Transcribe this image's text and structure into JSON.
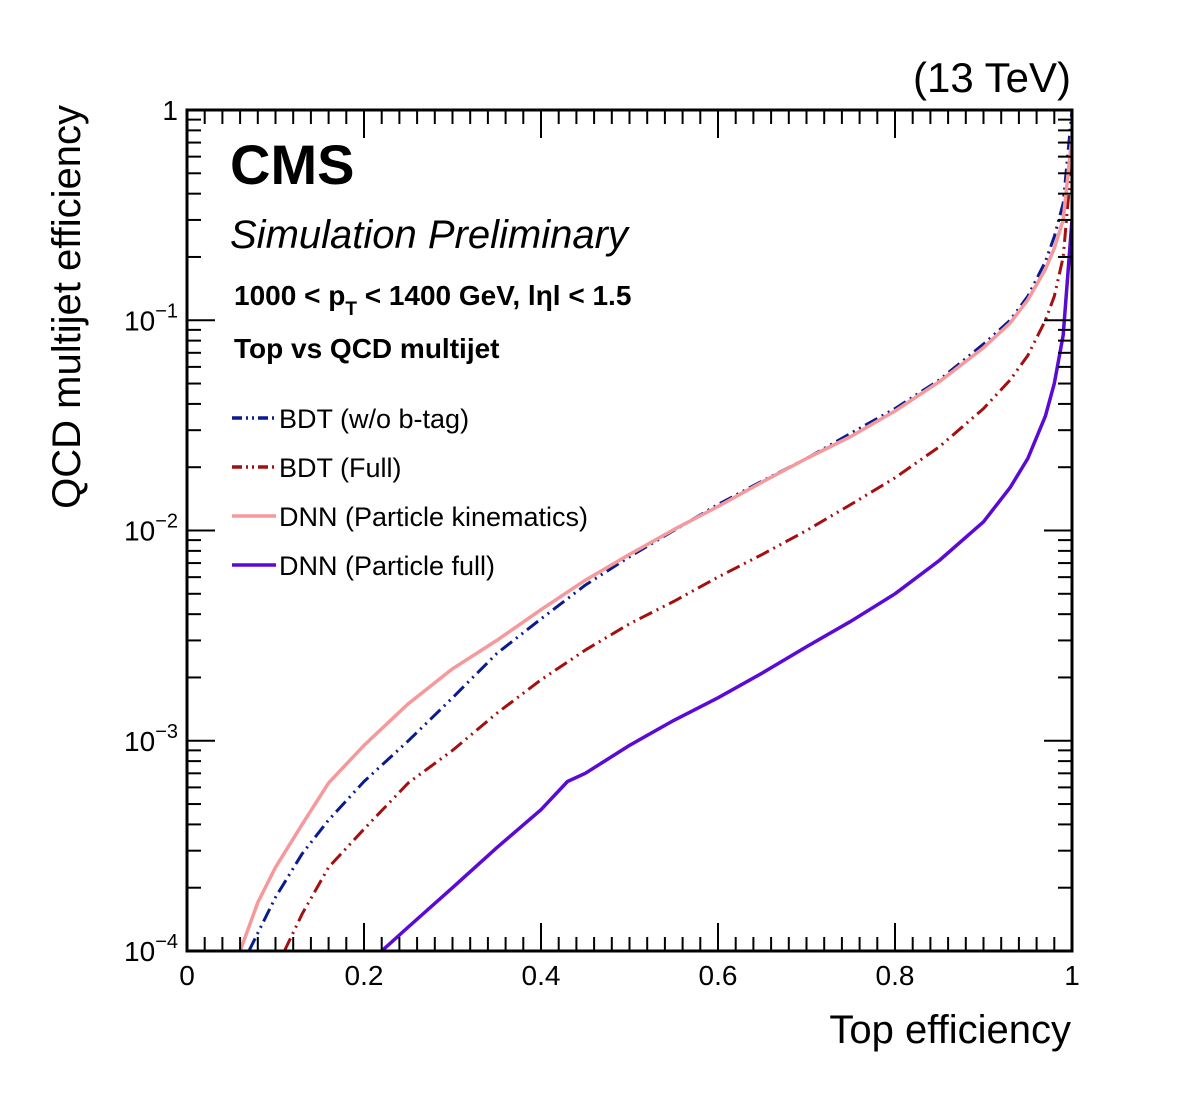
{
  "header": {
    "energy": "(13 TeV)",
    "experiment": "CMS",
    "status": "Simulation Preliminary",
    "selection_prefix": "1000 < p",
    "selection_sub": "T",
    "selection_suffix": " < 1400 GeV, lηl < 1.5",
    "comparison": "Top vs QCD multijet"
  },
  "chart_data": {
    "type": "line",
    "xlabel": "Top efficiency",
    "ylabel": "QCD multijet efficiency",
    "xlim": [
      0,
      1
    ],
    "ylim": [
      0.0001,
      1
    ],
    "yscale": "log",
    "x_ticks": [
      "0",
      "0.2",
      "0.4",
      "0.6",
      "0.8",
      "1"
    ],
    "y_ticks": [
      {
        "value": 0.0001,
        "base": "10",
        "exp": "−4"
      },
      {
        "value": 0.001,
        "base": "10",
        "exp": "−3"
      },
      {
        "value": 0.01,
        "base": "10",
        "exp": "−2"
      },
      {
        "value": 0.1,
        "base": "10",
        "exp": "−1"
      },
      {
        "value": 1,
        "base": "1",
        "exp": ""
      }
    ],
    "grid": false,
    "legend_position": "upper-left",
    "series": [
      {
        "name": "BDT (w/o b-tag)",
        "color": "#0b1b8f",
        "dash": "dash-dot-dot",
        "points": [
          [
            0.07,
            0.0001
          ],
          [
            0.1,
            0.00018
          ],
          [
            0.13,
            0.00029
          ],
          [
            0.16,
            0.00042
          ],
          [
            0.2,
            0.00064
          ],
          [
            0.25,
            0.001
          ],
          [
            0.3,
            0.0016
          ],
          [
            0.35,
            0.0026
          ],
          [
            0.4,
            0.0038
          ],
          [
            0.45,
            0.0055
          ],
          [
            0.5,
            0.0075
          ],
          [
            0.55,
            0.01
          ],
          [
            0.6,
            0.0133
          ],
          [
            0.65,
            0.0172
          ],
          [
            0.7,
            0.022
          ],
          [
            0.75,
            0.029
          ],
          [
            0.8,
            0.038
          ],
          [
            0.85,
            0.052
          ],
          [
            0.9,
            0.077
          ],
          [
            0.93,
            0.1
          ],
          [
            0.95,
            0.13
          ],
          [
            0.97,
            0.19
          ],
          [
            0.98,
            0.25
          ],
          [
            0.99,
            0.36
          ],
          [
            1.0,
            1.0
          ]
        ]
      },
      {
        "name": "BDT (Full)",
        "color": "#a50f0f",
        "dash": "dash-dot-dot",
        "points": [
          [
            0.11,
            0.0001
          ],
          [
            0.13,
            0.00015
          ],
          [
            0.16,
            0.00025
          ],
          [
            0.2,
            0.00038
          ],
          [
            0.25,
            0.00063
          ],
          [
            0.3,
            0.0009
          ],
          [
            0.35,
            0.00135
          ],
          [
            0.4,
            0.00195
          ],
          [
            0.45,
            0.0027
          ],
          [
            0.5,
            0.0036
          ],
          [
            0.55,
            0.0046
          ],
          [
            0.6,
            0.006
          ],
          [
            0.65,
            0.0077
          ],
          [
            0.7,
            0.01
          ],
          [
            0.75,
            0.0133
          ],
          [
            0.8,
            0.0178
          ],
          [
            0.85,
            0.025
          ],
          [
            0.9,
            0.038
          ],
          [
            0.93,
            0.052
          ],
          [
            0.95,
            0.068
          ],
          [
            0.97,
            0.1
          ],
          [
            0.98,
            0.13
          ],
          [
            0.99,
            0.2
          ],
          [
            1.0,
            0.6
          ]
        ]
      },
      {
        "name": "DNN (Particle kinematics)",
        "color": "#f6999c",
        "dash": "solid",
        "points": [
          [
            0.06,
            0.0001
          ],
          [
            0.08,
            0.00017
          ],
          [
            0.1,
            0.00025
          ],
          [
            0.13,
            0.0004
          ],
          [
            0.16,
            0.00063
          ],
          [
            0.2,
            0.00095
          ],
          [
            0.25,
            0.0015
          ],
          [
            0.3,
            0.0022
          ],
          [
            0.35,
            0.003
          ],
          [
            0.4,
            0.0042
          ],
          [
            0.45,
            0.0058
          ],
          [
            0.5,
            0.0077
          ],
          [
            0.55,
            0.0101
          ],
          [
            0.6,
            0.013
          ],
          [
            0.65,
            0.017
          ],
          [
            0.7,
            0.022
          ],
          [
            0.75,
            0.028
          ],
          [
            0.8,
            0.037
          ],
          [
            0.85,
            0.051
          ],
          [
            0.9,
            0.074
          ],
          [
            0.93,
            0.097
          ],
          [
            0.95,
            0.125
          ],
          [
            0.97,
            0.175
          ],
          [
            0.98,
            0.22
          ],
          [
            0.99,
            0.3
          ],
          [
            1.0,
            0.75
          ]
        ]
      },
      {
        "name": "DNN (Particle full)",
        "color": "#5b0ad6",
        "dash": "solid",
        "points": [
          [
            0.22,
            0.0001
          ],
          [
            0.25,
            0.00013
          ],
          [
            0.3,
            0.0002
          ],
          [
            0.35,
            0.00031
          ],
          [
            0.4,
            0.00047
          ],
          [
            0.43,
            0.00064
          ],
          [
            0.45,
            0.0007
          ],
          [
            0.5,
            0.00095
          ],
          [
            0.55,
            0.00125
          ],
          [
            0.6,
            0.0016
          ],
          [
            0.65,
            0.0021
          ],
          [
            0.7,
            0.0028
          ],
          [
            0.75,
            0.0037
          ],
          [
            0.8,
            0.005
          ],
          [
            0.85,
            0.0072
          ],
          [
            0.9,
            0.011
          ],
          [
            0.93,
            0.016
          ],
          [
            0.95,
            0.022
          ],
          [
            0.97,
            0.035
          ],
          [
            0.98,
            0.05
          ],
          [
            0.99,
            0.085
          ],
          [
            1.0,
            0.3
          ]
        ]
      }
    ]
  }
}
